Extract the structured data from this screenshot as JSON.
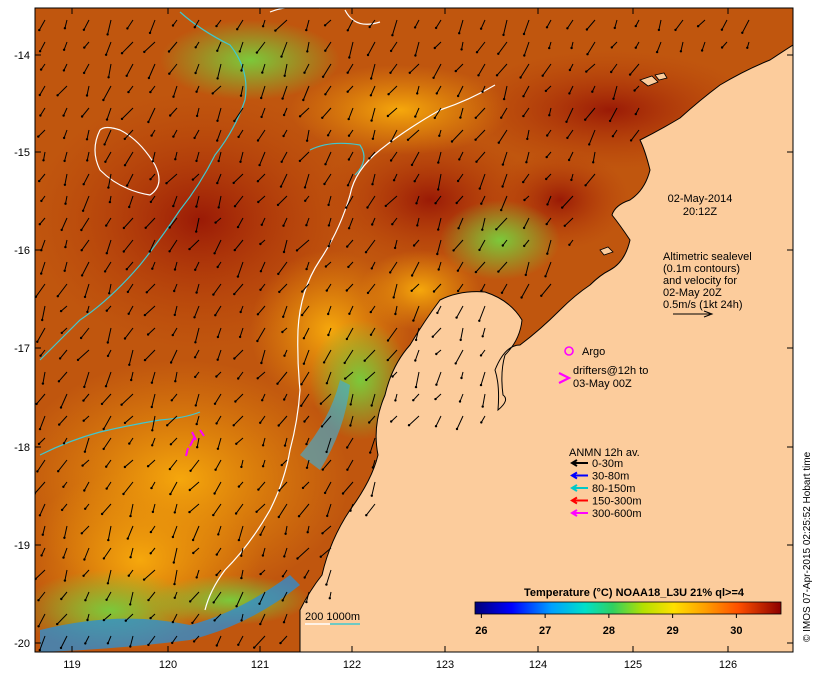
{
  "map": {
    "timestamp": {
      "date": "02-May-2014",
      "time": "20:12Z"
    },
    "altimetry_note": [
      "Altimetric sealevel",
      "(0.1m contours)",
      "and velocity for",
      "02-May 20Z",
      "0.5m/s (1kt 24h)"
    ],
    "argo_label": "Argo",
    "drifters_note": [
      "drifters@12h to",
      "03-May 00Z"
    ],
    "anmn": {
      "title": "ANMN 12h av.",
      "items": [
        {
          "label": "0-30m",
          "color": "#000000"
        },
        {
          "label": "30-80m",
          "color": "#0000ff"
        },
        {
          "label": "80-150m",
          "color": "#00c8c8"
        },
        {
          "label": "150-300m",
          "color": "#ff0000"
        },
        {
          "label": "300-600m",
          "color": "#ff00ff"
        }
      ]
    },
    "colorbar": {
      "title": "Temperature (°C) NOAA18_L3U 21% ql>=4",
      "ticks": [
        "26",
        "27",
        "28",
        "29",
        "30"
      ],
      "range": [
        25.9,
        30.7
      ]
    },
    "bathymetry_legend": "200  1000m",
    "credit": "© IMOS 07-Apr-2015 02:25:52 Hobart time",
    "axes": {
      "lat_ticks": [
        "-14",
        "-15",
        "-16",
        "-17",
        "-18",
        "-19",
        "-20"
      ],
      "lon_ticks": [
        "119",
        "120",
        "121",
        "122",
        "123",
        "124",
        "125",
        "126"
      ]
    },
    "colors": {
      "land": "#fccc9c",
      "bathy_200": "#ffffff",
      "bathy_1000": "#40c8d0",
      "argo": "#ff00ff",
      "drifter": "#ff00ff"
    }
  }
}
